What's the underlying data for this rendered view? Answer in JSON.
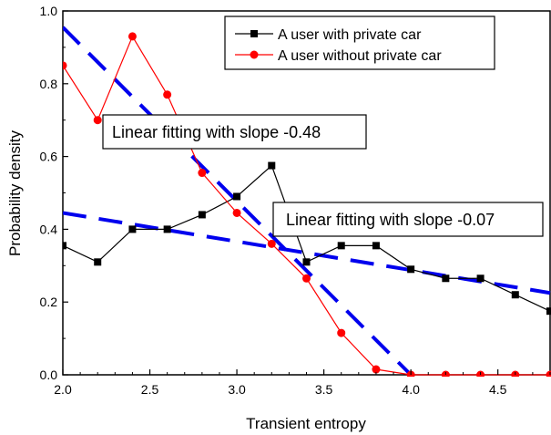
{
  "chart_data": {
    "type": "line",
    "xlabel": "Transient entropy",
    "ylabel": "Probability density",
    "xlim": [
      2.0,
      4.8
    ],
    "ylim": [
      0.0,
      1.0
    ],
    "xticks": [
      2.0,
      2.5,
      3.0,
      3.5,
      4.0,
      4.5
    ],
    "yticks": [
      0.0,
      0.2,
      0.4,
      0.6,
      0.8,
      1.0
    ],
    "xtick_labels": [
      "2.0",
      "2.5",
      "3.0",
      "3.5",
      "4.0",
      "4.5"
    ],
    "ytick_labels": [
      "0.0",
      "0.2",
      "0.4",
      "0.6",
      "0.8",
      "1.0"
    ],
    "series": [
      {
        "name": "A user with private car",
        "color": "#000000",
        "marker": "square",
        "x": [
          2.0,
          2.2,
          2.4,
          2.6,
          2.8,
          3.0,
          3.2,
          3.4,
          3.6,
          3.8,
          4.0,
          4.2,
          4.4,
          4.6,
          4.8
        ],
        "y": [
          0.355,
          0.31,
          0.4,
          0.4,
          0.44,
          0.49,
          0.575,
          0.31,
          0.355,
          0.355,
          0.29,
          0.265,
          0.265,
          0.22,
          0.175
        ]
      },
      {
        "name": "A user without private car",
        "color": "#ff0000",
        "marker": "circle",
        "x": [
          2.0,
          2.2,
          2.4,
          2.6,
          2.8,
          3.0,
          3.2,
          3.4,
          3.6,
          3.8,
          4.0,
          4.2,
          4.4,
          4.6,
          4.8
        ],
        "y": [
          0.85,
          0.7,
          0.93,
          0.77,
          0.555,
          0.445,
          0.36,
          0.265,
          0.115,
          0.015,
          0.0,
          0.0,
          0.0,
          0.0,
          0.0
        ]
      }
    ],
    "fit_lines": [
      {
        "color": "#0000ee",
        "style": "dashed",
        "slope": -0.48,
        "label": "Linear fitting with slope -0.48",
        "x": [
          2.0,
          4.0
        ],
        "y": [
          0.955,
          0.0
        ]
      },
      {
        "color": "#0000ee",
        "style": "dashed",
        "slope": -0.07,
        "label": "Linear fitting with slope -0.07",
        "x": [
          2.0,
          4.8
        ],
        "y": [
          0.445,
          0.225
        ]
      }
    ],
    "legend_placement": "top-right",
    "grid": false
  }
}
